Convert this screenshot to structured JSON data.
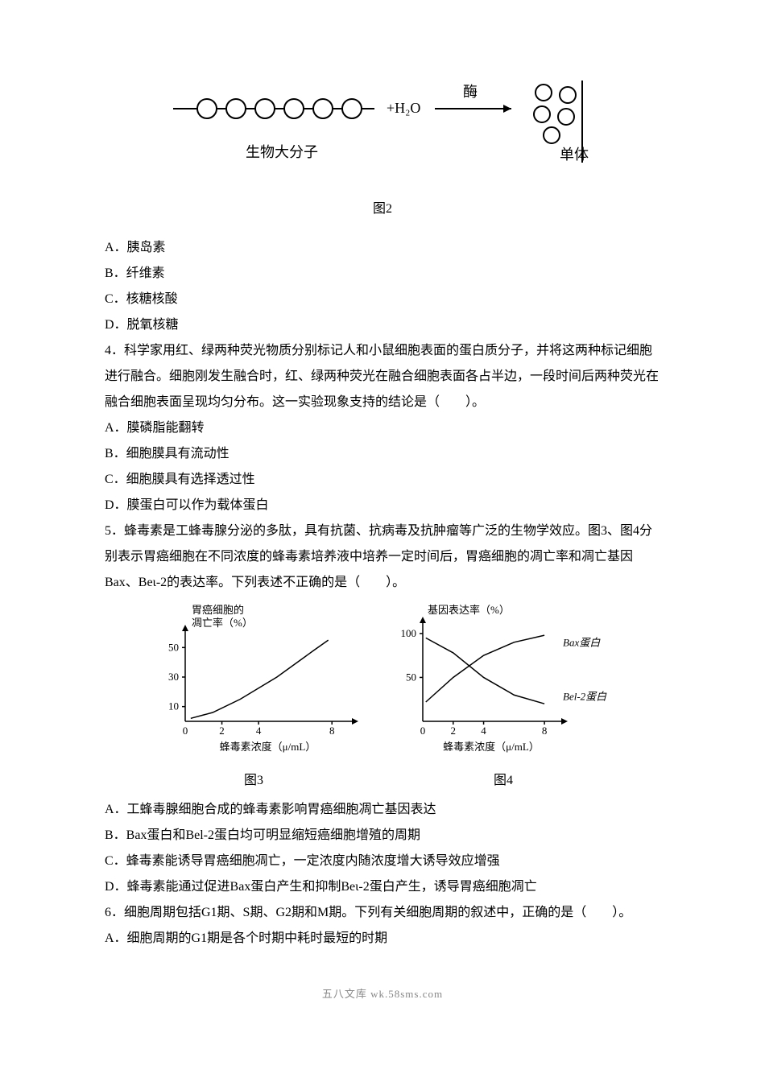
{
  "figure2": {
    "caption": "图2",
    "reactionLabels": {
      "macromolecule": "生物大分子",
      "water": "+H₂O",
      "enzyme": "酶",
      "product": "单体"
    },
    "colors": {
      "stroke": "#000000",
      "bg": "#ffffff"
    }
  },
  "q3": {
    "options": {
      "A": "A．胰岛素",
      "B": "B．纤维素",
      "C": "C．核糖核酸",
      "D": "D．脱氧核糖"
    }
  },
  "q4": {
    "stem": "4．科学家用红、绿两种荧光物质分别标记人和小鼠细胞表面的蛋白质分子，并将这两种标记细胞进行融合。细胞刚发生融合时，红、绿两种荧光在融合细胞表面各占半边，一段时间后两种荧光在融合细胞表面呈现均匀分布。这一实验现象支持的结论是（　　）。",
    "options": {
      "A": "A．膜磷脂能翻转",
      "B": "B．细胞膜具有流动性",
      "C": "C．细胞膜具有选择透过性",
      "D": "D．膜蛋白可以作为载体蛋白"
    }
  },
  "q5": {
    "stem": "5．蜂毒素是工蜂毒腺分泌的多肽，具有抗菌、抗病毒及抗肿瘤等广泛的生物学效应。图3、图4分别表示胃癌细胞在不同浓度的蜂毒素培养液中培养一定时间后，胃癌细胞的凋亡率和凋亡基因Bax、Beι-2的表达率。下列表述不正确的是（　　）。",
    "options": {
      "A": "A．工蜂毒腺细胞合成的蜂毒素影响胃癌细胞凋亡基因表达",
      "B": "B．Bax蛋白和Bel-2蛋白均可明显缩短癌细胞增殖的周期",
      "C": "C．蜂毒素能诱导胃癌细胞凋亡，一定浓度内随浓度增大诱导效应增强",
      "D": "D．蜂毒素能通过促进Bax蛋白产生和抑制Beι-2蛋白产生，诱导胃癌细胞凋亡"
    }
  },
  "figure3": {
    "caption": "图3",
    "ylabel1": "胃癌细胞的",
    "ylabel2": "凋亡率（%）",
    "xlabel": "蜂毒素浓度（μ/mL）",
    "xticks": [
      "0",
      "2",
      "4",
      "8"
    ],
    "yticks": [
      "10",
      "30",
      "50"
    ],
    "xtick_positions": [
      0,
      2,
      4,
      8
    ],
    "ytick_positions": [
      10,
      30,
      50
    ],
    "curve_points": [
      [
        0.3,
        2
      ],
      [
        1.5,
        6
      ],
      [
        3,
        15
      ],
      [
        5,
        30
      ],
      [
        7,
        48
      ],
      [
        7.8,
        55
      ]
    ],
    "xlim": [
      0,
      9
    ],
    "ylim": [
      0,
      60
    ],
    "stroke": "#000000",
    "line_width": 1.5,
    "font_size": 13
  },
  "figure4": {
    "caption": "图4",
    "ylabel": "基因表达率（%）",
    "xlabel": "蜂毒素浓度（μ/mL）",
    "xticks": [
      "0",
      "2",
      "4",
      "8"
    ],
    "yticks": [
      "50",
      "100"
    ],
    "xtick_positions": [
      0,
      2,
      4,
      8
    ],
    "ytick_positions": [
      50,
      100
    ],
    "series": {
      "bax": {
        "label": "Bax蛋白",
        "points": [
          [
            0.2,
            22
          ],
          [
            2,
            50
          ],
          [
            4,
            75
          ],
          [
            6,
            90
          ],
          [
            8,
            98
          ]
        ]
      },
      "bel": {
        "label": "Bel-2蛋白",
        "points": [
          [
            0.2,
            95
          ],
          [
            2,
            78
          ],
          [
            4,
            50
          ],
          [
            6,
            30
          ],
          [
            8,
            20
          ]
        ]
      }
    },
    "xlim": [
      0,
      9
    ],
    "ylim": [
      0,
      110
    ],
    "stroke": "#000000",
    "line_width": 1.5,
    "font_size": 13
  },
  "q6": {
    "stem": "6．细胞周期包括G1期、S期、G2期和M期。下列有关细胞周期的叙述中，正确的是（　　）。",
    "options": {
      "A": "A．细胞周期的G1期是各个时期中耗时最短的时期"
    }
  },
  "footer": "五八文库 wk.58sms.com"
}
